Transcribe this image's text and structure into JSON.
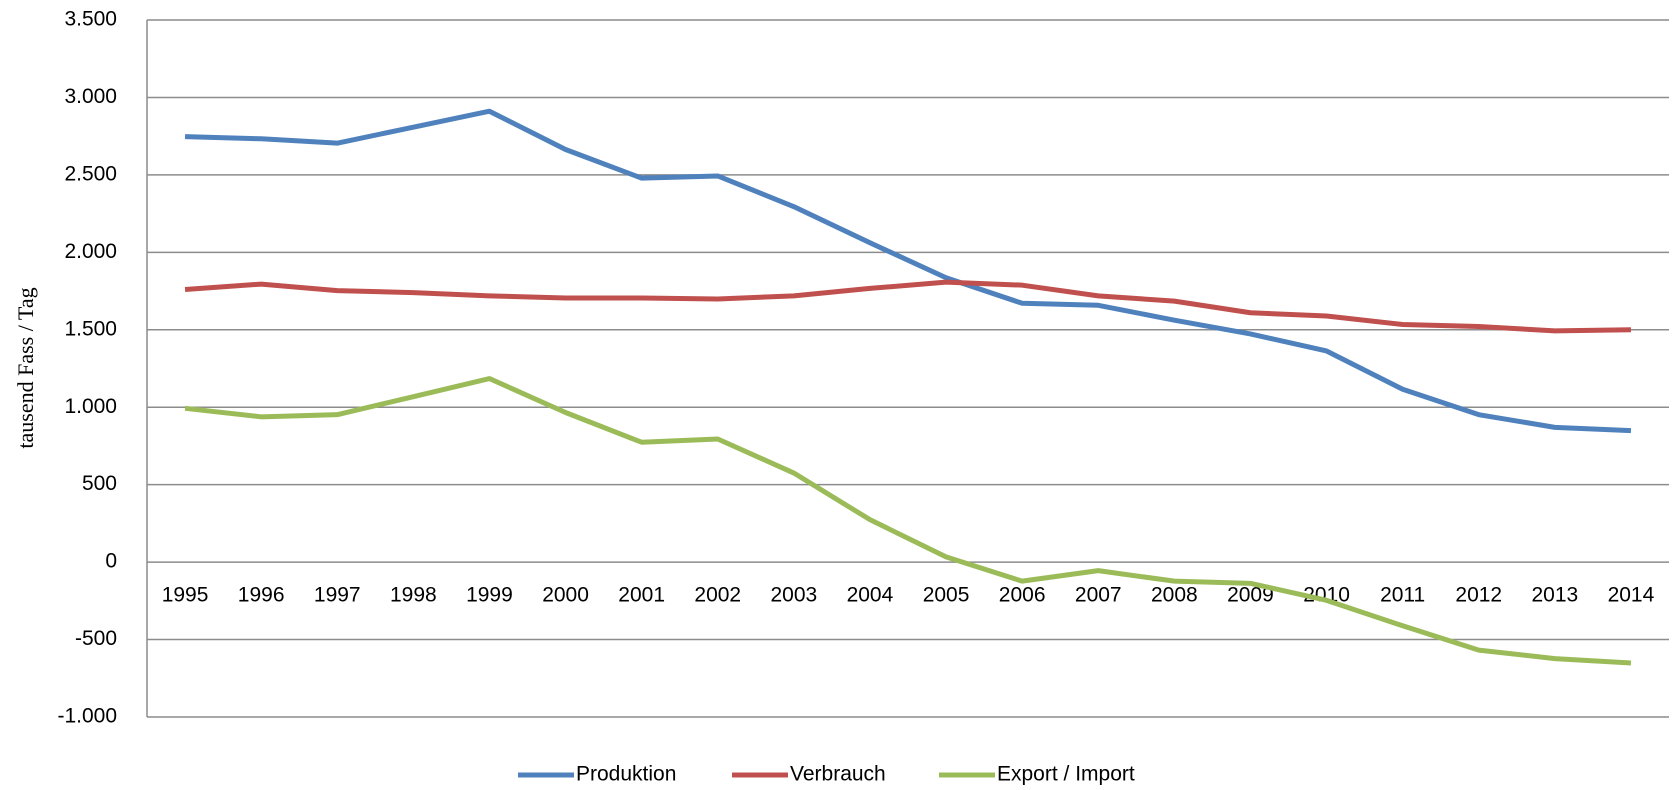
{
  "chart_data": {
    "type": "line",
    "ylabel": "tausend Fass / Tag",
    "categories": [
      "1995",
      "1996",
      "1997",
      "1998",
      "1999",
      "2000",
      "2001",
      "2002",
      "2003",
      "2004",
      "2005",
      "2006",
      "2007",
      "2008",
      "2009",
      "2010",
      "2011",
      "2012",
      "2013",
      "2014"
    ],
    "series": [
      {
        "name": "Produktion",
        "color": "#4f81bd",
        "values": [
          2747,
          2733,
          2705,
          2808,
          2911,
          2664,
          2479,
          2493,
          2295,
          2062,
          1836,
          1671,
          1658,
          1562,
          1473,
          1363,
          1116,
          952,
          870,
          849
        ]
      },
      {
        "name": "Verbrauch",
        "color": "#c0504d",
        "values": [
          1760,
          1795,
          1753,
          1740,
          1719,
          1705,
          1705,
          1699,
          1719,
          1767,
          1808,
          1788,
          1719,
          1685,
          1610,
          1589,
          1534,
          1521,
          1493,
          1500
        ]
      },
      {
        "name": "Export / Import",
        "color": "#9bbb59",
        "values": [
          993,
          938,
          952,
          1068,
          1185,
          966,
          774,
          795,
          575,
          274,
          34,
          -123,
          -55,
          -123,
          -137,
          -247,
          -411,
          -568,
          -623,
          -651
        ]
      }
    ],
    "ylim": [
      -1000,
      3500
    ],
    "yticks": [
      {
        "value": -1000,
        "label": "-1.000"
      },
      -500,
      0,
      500,
      {
        "value": 1000,
        "label": "1.000"
      },
      {
        "value": 1500,
        "label": "1.500"
      },
      {
        "value": 2000,
        "label": "2.000"
      },
      {
        "value": 2500,
        "label": "2.500"
      },
      {
        "value": 3000,
        "label": "3.000"
      },
      {
        "value": 3500,
        "label": "3.500"
      }
    ],
    "negative_tick_color": "#ff0000",
    "grid": true,
    "legend": "bottom"
  }
}
